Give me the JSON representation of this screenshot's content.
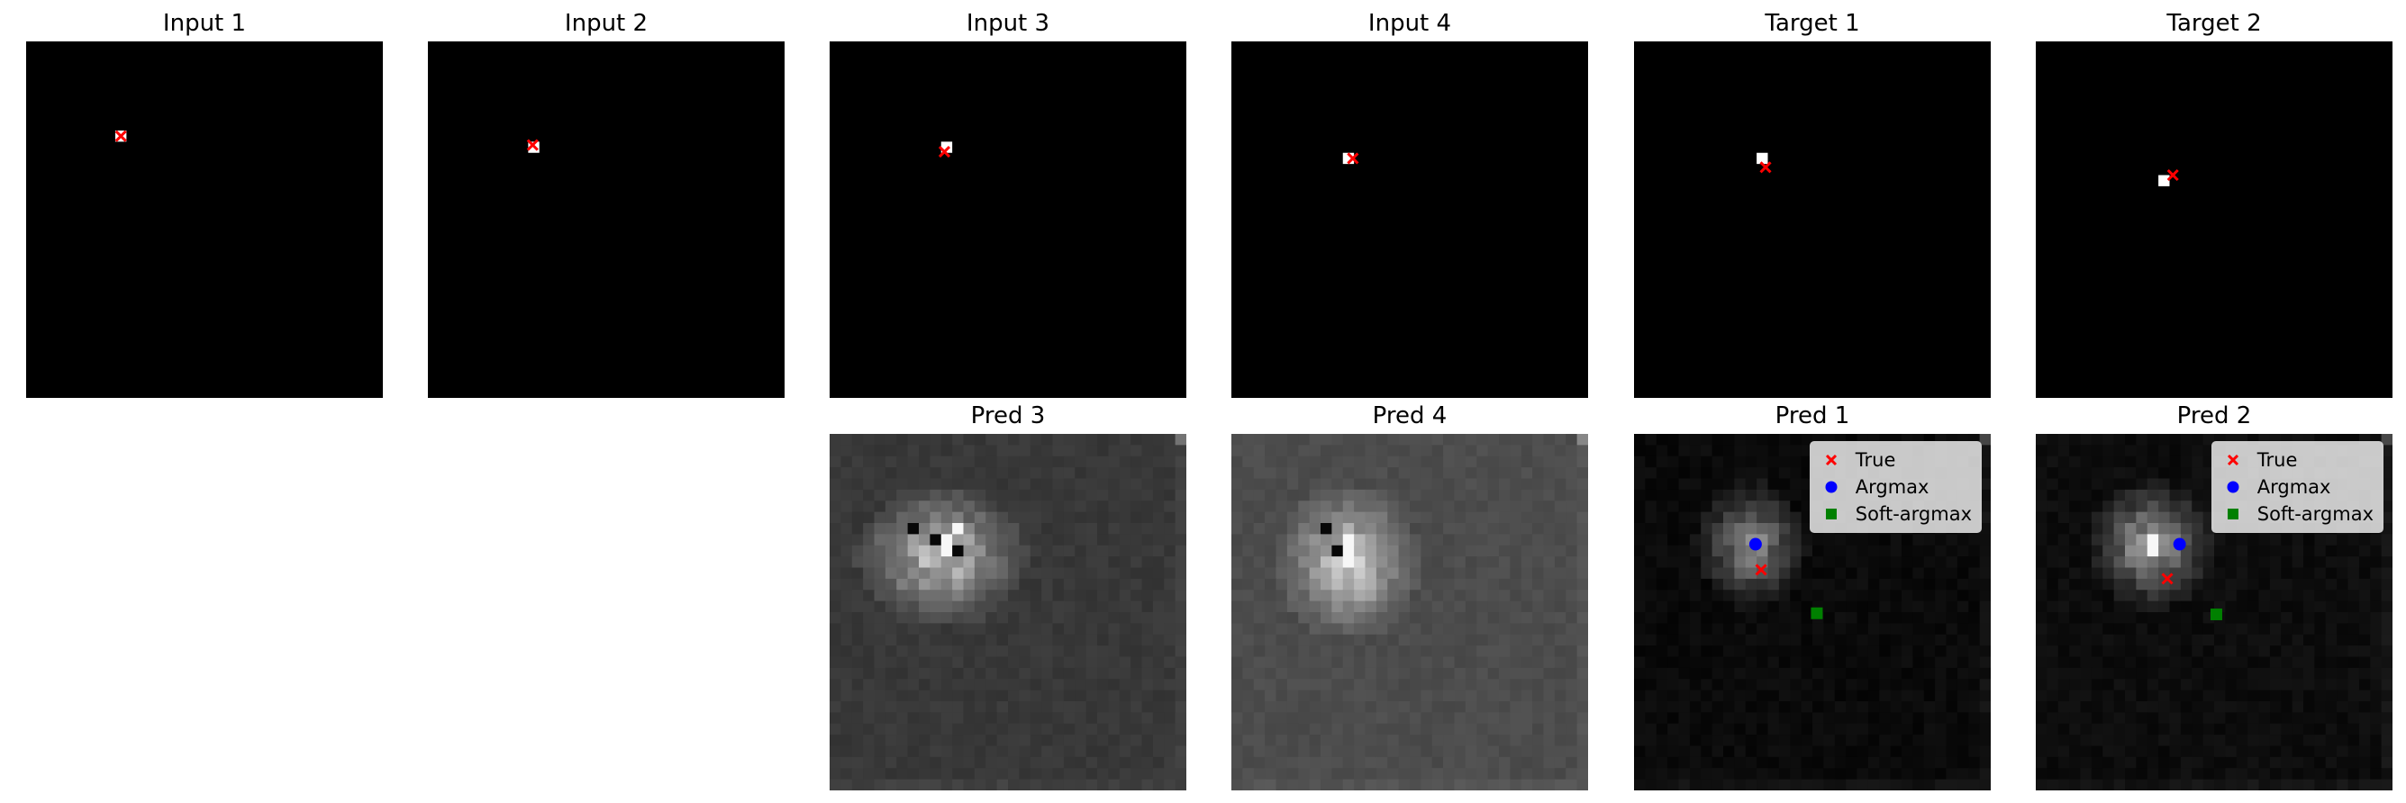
{
  "chart_data": {
    "type": "heatmap",
    "grid_size": 32,
    "panels": [
      {
        "title": "Input 1",
        "kind": "input",
        "hot": [
          [
            8,
            8
          ]
        ],
        "true": [
          8.0,
          8.0
        ],
        "legend": false
      },
      {
        "title": "Input 2",
        "kind": "input",
        "hot": [
          [
            9,
            9
          ]
        ],
        "true": [
          8.8,
          8.9
        ],
        "legend": false
      },
      {
        "title": "Input 3",
        "kind": "input",
        "hot": [
          [
            9,
            10
          ]
        ],
        "true": [
          9.4,
          9.8
        ],
        "legend": false
      },
      {
        "title": "Input 4",
        "kind": "input",
        "hot": [
          [
            10,
            10
          ]
        ],
        "true": [
          10.0,
          10.4
        ],
        "legend": false
      },
      {
        "title": "Target 1",
        "kind": "input",
        "hot": [
          [
            10,
            11
          ]
        ],
        "true": [
          10.8,
          11.3
        ],
        "legend": false
      },
      {
        "title": "Target 2",
        "kind": "input",
        "hot": [
          [
            12,
            11
          ]
        ],
        "true": [
          11.5,
          11.8
        ],
        "legend": false
      },
      {
        "title": "Pred 3",
        "kind": "pred",
        "background": 0.22,
        "blob_center": [
          10.5,
          9.5
        ],
        "blob_radius": [
          5.0,
          6.0
        ],
        "blob_peak": 0.85,
        "dark_cells": [
          [
            8,
            7
          ],
          [
            9,
            9
          ],
          [
            10,
            11
          ]
        ],
        "bright_cells": [
          [
            8,
            11
          ],
          [
            9,
            10
          ],
          [
            10,
            10
          ]
        ],
        "legend": false
      },
      {
        "title": "Pred 4",
        "kind": "pred",
        "background": 0.3,
        "blob_center": [
          11.0,
          10.0
        ],
        "blob_radius": [
          5.5,
          5.0
        ],
        "blob_peak": 0.9,
        "dark_cells": [
          [
            8,
            8
          ],
          [
            10,
            9
          ]
        ],
        "bright_cells": [
          [
            9,
            10
          ],
          [
            10,
            10
          ],
          [
            11,
            10
          ]
        ],
        "legend": false
      },
      {
        "title": "Pred 1",
        "kind": "pred",
        "background": 0.04,
        "blob_center": [
          9.5,
          10.0
        ],
        "blob_radius": [
          4.5,
          4.0
        ],
        "blob_peak": 0.6,
        "dark_cells": [],
        "bright_cells": [],
        "true": [
          11.7,
          10.9
        ],
        "argmax": [
          9.4,
          10.4
        ],
        "softargmax": [
          15.6,
          15.9
        ],
        "legend": true
      },
      {
        "title": "Pred 2",
        "kind": "pred",
        "background": 0.05,
        "blob_center": [
          9.5,
          10.0
        ],
        "blob_radius": [
          4.5,
          4.5
        ],
        "blob_peak": 0.7,
        "dark_cells": [],
        "bright_cells": [
          [
            9,
            10
          ],
          [
            10,
            10
          ]
        ],
        "true": [
          12.5,
          11.3
        ],
        "argmax": [
          9.4,
          12.4
        ],
        "softargmax": [
          15.7,
          15.7
        ],
        "legend": true
      }
    ],
    "legend": {
      "placement": "upper right",
      "entries": [
        {
          "label": "True",
          "marker": "x",
          "color": "#ff0000"
        },
        {
          "label": "Argmax",
          "marker": "o",
          "color": "#0000ff"
        },
        {
          "label": "Soft-argmax",
          "marker": "s",
          "color": "#008000"
        }
      ]
    }
  }
}
